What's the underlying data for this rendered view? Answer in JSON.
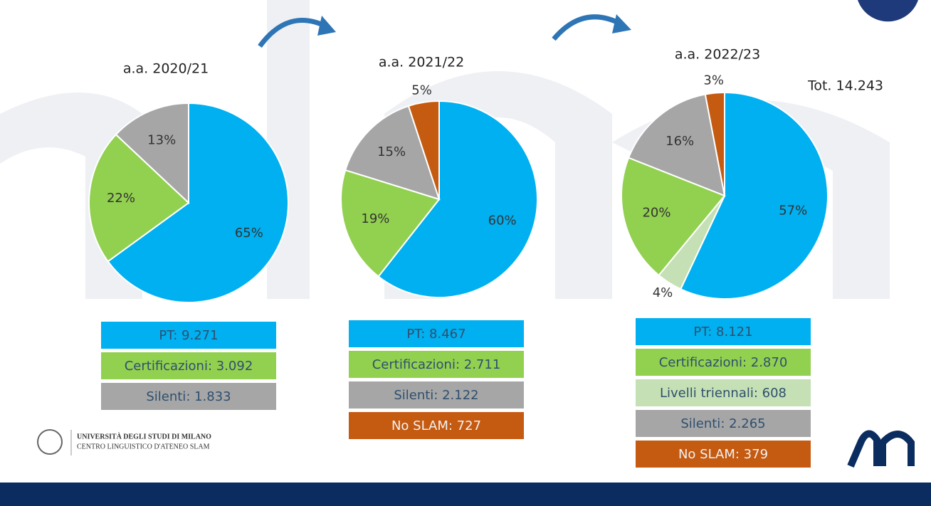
{
  "chart_data": [
    {
      "type": "pie",
      "title": "a.a. 2020/21",
      "values": [
        65,
        22,
        13
      ],
      "value_labels": [
        "65%",
        "22%",
        "13%"
      ],
      "colors": [
        "#00b0f0",
        "#92d050",
        "#a6a6a6"
      ],
      "boxes": [
        {
          "text": "PT: 9.271",
          "color": "#00b0f0",
          "text_color": "#2f4f6f"
        },
        {
          "text": "Certificazioni: 3.092",
          "color": "#92d050",
          "text_color": "#2f4f6f"
        },
        {
          "text": "Silenti: 1.833",
          "color": "#a6a6a6",
          "text_color": "#2f4f6f"
        }
      ]
    },
    {
      "type": "pie",
      "title": "a.a. 2021/22",
      "values": [
        60,
        19,
        15,
        5
      ],
      "value_labels": [
        "60%",
        "19%",
        "15%",
        "5%"
      ],
      "colors": [
        "#00b0f0",
        "#92d050",
        "#a6a6a6",
        "#c55a11"
      ],
      "boxes": [
        {
          "text": "PT: 8.467",
          "color": "#00b0f0",
          "text_color": "#2f4f6f"
        },
        {
          "text": "Certificazioni: 2.711",
          "color": "#92d050",
          "text_color": "#2f4f6f"
        },
        {
          "text": "Silenti: 2.122",
          "color": "#a6a6a6",
          "text_color": "#2f4f6f"
        },
        {
          "text": "No SLAM: 727",
          "color": "#c55a11",
          "text_color": "#f2f2f2"
        }
      ]
    },
    {
      "type": "pie",
      "title": "a.a. 2022/23",
      "annotation": "Tot. 14.243",
      "values": [
        57,
        4,
        20,
        16,
        3
      ],
      "value_labels": [
        "57%",
        "4%",
        "20%",
        "16%",
        "3%"
      ],
      "colors": [
        "#00b0f0",
        "#c5e0b4",
        "#92d050",
        "#a6a6a6",
        "#c55a11"
      ],
      "boxes": [
        {
          "text": "PT: 8.121",
          "color": "#00b0f0",
          "text_color": "#2f4f6f"
        },
        {
          "text": "Certificazioni: 2.870",
          "color": "#92d050",
          "text_color": "#2f4f6f"
        },
        {
          "text": "Livelli triennali: 608",
          "color": "#c5e0b4",
          "text_color": "#2f4f6f"
        },
        {
          "text": "Silenti: 2.265",
          "color": "#a6a6a6",
          "text_color": "#2f4f6f"
        },
        {
          "text": "No SLAM: 379",
          "color": "#c55a11",
          "text_color": "#f2f2f2"
        }
      ]
    }
  ],
  "footer": {
    "university": "UNIVERSITÀ DEGLI STUDI DI MILANO",
    "centre": "CENTRO LINGUISTICO D'ATENEO SLAM"
  }
}
